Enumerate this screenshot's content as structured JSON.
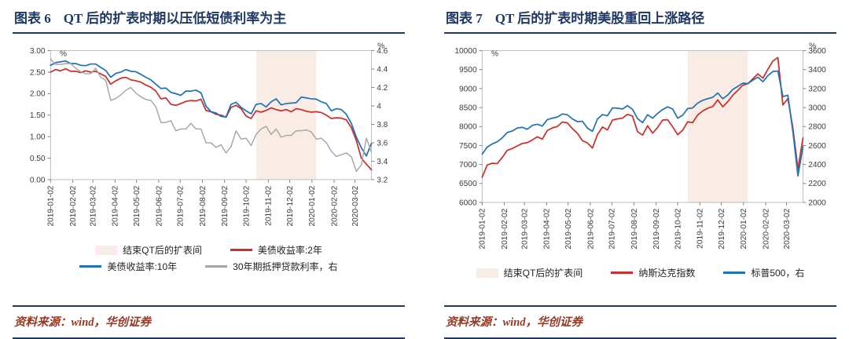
{
  "theme": {
    "navy": "#1f3864",
    "maroon": "#963a26",
    "band_color": "#f9ece5",
    "red": "#c9302c",
    "blue": "#2272b5",
    "gray": "#a6a6a6",
    "axis_text": "#3a3a3a",
    "axis_line": "#7f7f7f"
  },
  "source_note": {
    "text": "资料来源：wind，华创证券"
  },
  "chart_data": [
    {
      "type": "line",
      "figure_label": "图表 6",
      "title": "QT 后的扩表时期以压低短债利率为主",
      "unit_left": "%",
      "unit_right": "%",
      "x_start_date": "2019-01-02",
      "x_end_date": "2020-03-25",
      "point_interval_days": 7,
      "x_tick_labels": [
        "2019-01-02",
        "2019-02-02",
        "2019-03-02",
        "2019-04-02",
        "2019-05-02",
        "2019-06-02",
        "2019-07-02",
        "2019-08-02",
        "2019-09-02",
        "2019-10-02",
        "2019-11-02",
        "2019-12-02",
        "2020-01-02",
        "2020-02-02",
        "2020-03-02"
      ],
      "left_axis": {
        "min": 0,
        "max": 3,
        "step": 0.5,
        "decimals": 2,
        "trim": false
      },
      "right_axis": {
        "min": 3.2,
        "max": 4.6,
        "step": 0.2,
        "decimals": 1,
        "trim": true
      },
      "band": {
        "label": "结束QT后的扩表间",
        "from": "2019-10-16",
        "to": "2020-01-08",
        "color": "#f9ece5"
      },
      "series": [
        {
          "name": "美债收益率:2年",
          "axis": "left",
          "color": "#c9302c",
          "width": 1.8,
          "values": [
            2.5,
            2.56,
            2.53,
            2.58,
            2.52,
            2.52,
            2.49,
            2.53,
            2.5,
            2.52,
            2.46,
            2.4,
            2.22,
            2.3,
            2.36,
            2.38,
            2.32,
            2.3,
            2.27,
            2.2,
            2.15,
            2.06,
            1.88,
            1.9,
            1.75,
            1.73,
            1.77,
            1.82,
            1.84,
            1.83,
            1.87,
            1.61,
            1.58,
            1.52,
            1.5,
            1.45,
            1.68,
            1.73,
            1.65,
            1.48,
            1.42,
            1.6,
            1.57,
            1.61,
            1.67,
            1.63,
            1.6,
            1.63,
            1.58,
            1.65,
            1.63,
            1.59,
            1.57,
            1.58,
            1.56,
            1.5,
            1.42,
            1.44,
            1.43,
            1.39,
            1.21,
            0.91,
            0.5,
            0.36,
            0.23
          ]
        },
        {
          "name": "美债收益率:10年",
          "axis": "left",
          "color": "#2272b5",
          "width": 1.8,
          "values": [
            2.66,
            2.72,
            2.74,
            2.76,
            2.7,
            2.7,
            2.66,
            2.65,
            2.69,
            2.69,
            2.61,
            2.54,
            2.38,
            2.47,
            2.5,
            2.56,
            2.52,
            2.51,
            2.45,
            2.38,
            2.32,
            2.22,
            2.12,
            2.13,
            2.03,
            2.0,
            1.96,
            2.06,
            2.06,
            2.08,
            2.02,
            1.71,
            1.58,
            1.55,
            1.47,
            1.46,
            1.75,
            1.8,
            1.68,
            1.6,
            1.53,
            1.75,
            1.77,
            1.69,
            1.81,
            1.88,
            1.74,
            1.77,
            1.78,
            1.79,
            1.92,
            1.9,
            1.88,
            1.87,
            1.81,
            1.77,
            1.6,
            1.65,
            1.63,
            1.52,
            1.31,
            0.99,
            0.74,
            0.55,
            0.84
          ]
        },
        {
          "name": "30年期抵押贷款利率，右",
          "axis": "right",
          "color": "#a6a6a6",
          "width": 1.5,
          "values": [
            4.51,
            4.45,
            4.45,
            4.46,
            4.46,
            4.41,
            4.37,
            4.35,
            4.35,
            4.41,
            4.31,
            4.28,
            4.06,
            4.08,
            4.12,
            4.17,
            4.2,
            4.14,
            4.1,
            4.07,
            4.06,
            3.99,
            3.82,
            3.82,
            3.84,
            3.73,
            3.75,
            3.75,
            3.81,
            3.75,
            3.75,
            3.6,
            3.6,
            3.55,
            3.58,
            3.49,
            3.56,
            3.73,
            3.64,
            3.65,
            3.57,
            3.69,
            3.75,
            3.78,
            3.69,
            3.75,
            3.66,
            3.68,
            3.68,
            3.73,
            3.73,
            3.74,
            3.72,
            3.64,
            3.65,
            3.6,
            3.51,
            3.45,
            3.47,
            3.49,
            3.45,
            3.29,
            3.36,
            3.65,
            3.5
          ]
        }
      ],
      "legend_rows": [
        [
          {
            "type": "band",
            "label": "结束QT后的扩表间"
          },
          {
            "type": "line",
            "series": 0
          }
        ],
        [
          {
            "type": "line",
            "series": 1
          },
          {
            "type": "line",
            "series": 2
          }
        ]
      ]
    },
    {
      "type": "line",
      "figure_label": "图表 7",
      "title": "QT 后的扩表时期美股重回上涨路径",
      "unit_left": "%",
      "unit_right": "%",
      "x_start_date": "2019-01-02",
      "x_end_date": "2020-03-25",
      "point_interval_days": 7,
      "x_tick_labels": [
        "2019-01-02",
        "2019-02-02",
        "2019-03-02",
        "2019-04-02",
        "2019-05-02",
        "2019-06-02",
        "2019-07-02",
        "2019-08-02",
        "2019-09-02",
        "2019-10-02",
        "2019-11-02",
        "2019-12-02",
        "2020-01-02",
        "2020-02-02",
        "2020-03-02"
      ],
      "left_axis": {
        "min": 6000,
        "max": 10000,
        "step": 500,
        "decimals": 0,
        "trim": false
      },
      "right_axis": {
        "min": 2000,
        "max": 3600,
        "step": 200,
        "decimals": 0,
        "trim": false
      },
      "band": {
        "label": "结束QT后的扩表间",
        "from": "2019-10-16",
        "to": "2020-01-08",
        "color": "#f9ece5"
      },
      "series": [
        {
          "name": "纳斯达克指数",
          "axis": "left",
          "color": "#c9302c",
          "width": 1.8,
          "values": [
            6665,
            6986,
            7035,
            7025,
            7183,
            7375,
            7420,
            7489,
            7554,
            7576,
            7643,
            7729,
            7669,
            7895,
            7964,
            8000,
            8120,
            8095,
            7943,
            7822,
            7628,
            7567,
            7435,
            7792,
            7987,
            7910,
            8170,
            8203,
            8222,
            8321,
            8273,
            7863,
            7774,
            8020,
            7827,
            7976,
            8169,
            8177,
            7993,
            7785,
            7904,
            8124,
            8104,
            8304,
            8411,
            8482,
            8526,
            8705,
            8520,
            8654,
            8827,
            8952,
            9092,
            9129,
            9258,
            9389,
            9275,
            9508,
            9726,
            9817,
            8567,
            8738,
            7952,
            6879,
            7700
          ]
        },
        {
          "name": "标普500，右",
          "axis": "right",
          "color": "#2272b5",
          "width": 1.8,
          "values": [
            2510,
            2584,
            2616,
            2639,
            2681,
            2738,
            2753,
            2785,
            2792,
            2771,
            2811,
            2824,
            2805,
            2873,
            2888,
            2900,
            2933,
            2924,
            2880,
            2851,
            2856,
            2783,
            2750,
            2880,
            2926,
            2914,
            2996,
            2994,
            2985,
            3020,
            2980,
            2884,
            2841,
            2925,
            2888,
            2938,
            2979,
            3007,
            2985,
            2888,
            2920,
            2990,
            2996,
            3047,
            3077,
            3094,
            3108,
            3153,
            3093,
            3132,
            3191,
            3224,
            3258,
            3253,
            3289,
            3321,
            3273,
            3335,
            3380,
            3386,
            3116,
            3130,
            2741,
            2280,
            2590
          ]
        }
      ],
      "legend_rows": [
        [
          {
            "type": "band",
            "label": "结束QT后的扩表间"
          },
          {
            "type": "line",
            "series": 0
          },
          {
            "type": "line",
            "series": 1
          }
        ]
      ]
    }
  ]
}
